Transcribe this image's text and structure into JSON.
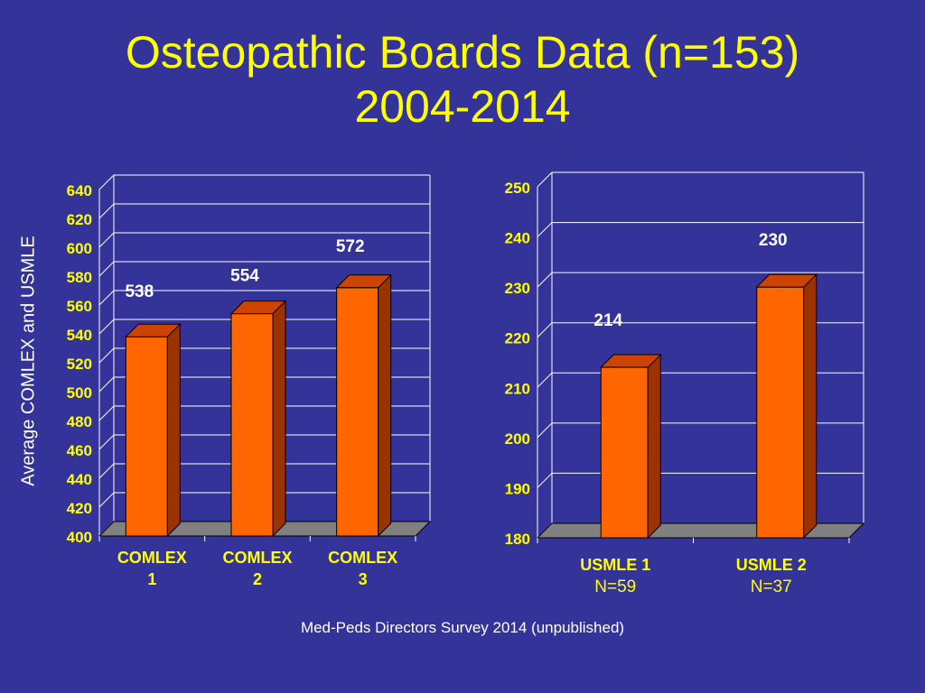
{
  "slide": {
    "title_line1": "Osteopathic Boards Data (n=153)",
    "title_line2": "2004-2014",
    "ylabel": "Average COMLEX and USMLE",
    "source": "Med-Peds Directors Survey 2014  (unpublished)"
  },
  "colors": {
    "background": "#333399",
    "title": "#ffff00",
    "bar_front": "#ff6600",
    "bar_side": "#993300",
    "bar_top": "#cc4400",
    "floor": "#808080",
    "grid": "#ffffff",
    "tick_text": "#ffff00",
    "value_text": "#ffffff",
    "category_text": "#ffff00",
    "note_text": "#ffff00"
  },
  "chart_data": [
    {
      "type": "bar",
      "categories": [
        "COMLEX 1",
        "COMLEX 2",
        "COMLEX 3"
      ],
      "category_lines": [
        [
          "COMLEX",
          "1"
        ],
        [
          "COMLEX",
          "2"
        ],
        [
          "COMLEX",
          "3"
        ]
      ],
      "values": [
        538,
        554,
        572
      ],
      "ylim": [
        400,
        640
      ],
      "yticks": [
        400,
        420,
        440,
        460,
        480,
        500,
        520,
        540,
        560,
        580,
        600,
        620,
        640
      ],
      "grid": true
    },
    {
      "type": "bar",
      "categories": [
        "USMLE 1",
        "USMLE 2"
      ],
      "category_lines": [
        [
          "USMLE 1",
          "N=59"
        ],
        [
          "USMLE 2",
          "N=37"
        ]
      ],
      "values": [
        214,
        230
      ],
      "ylim": [
        180,
        250
      ],
      "yticks": [
        180,
        190,
        200,
        210,
        220,
        230,
        240,
        250
      ],
      "grid": true
    }
  ]
}
